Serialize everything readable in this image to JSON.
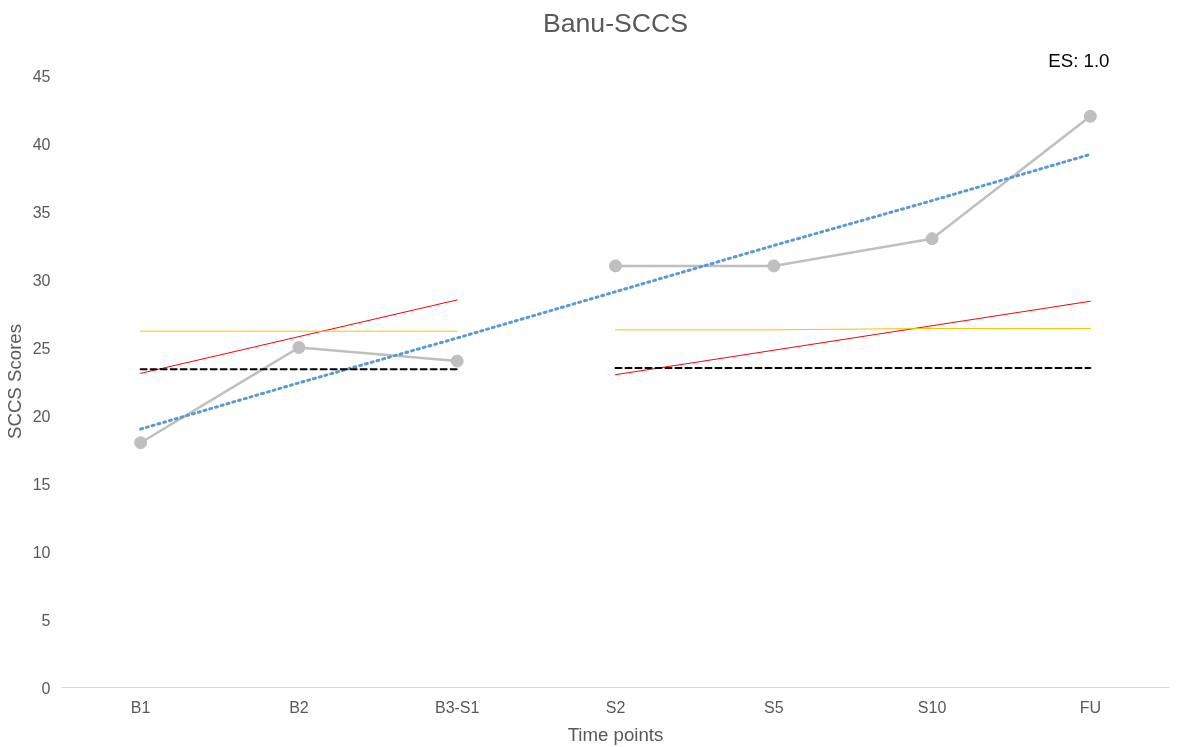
{
  "chart_data": {
    "type": "line",
    "title": "Banu-SCCS",
    "xlabel": "Time points",
    "ylabel": "SCCS Scores",
    "annotations": [
      "ES: 1.0"
    ],
    "categories": [
      "B1",
      "B2",
      "B3-S1",
      "S2",
      "S5",
      "S10",
      "FU"
    ],
    "ylim": [
      0,
      45
    ],
    "yticks": [
      0,
      5,
      10,
      15,
      20,
      25,
      30,
      35,
      40,
      45
    ],
    "grid": false,
    "series": [
      {
        "color": "#bfbfbf",
        "marker": "circle",
        "line_style": "solid",
        "values": [
          18,
          25,
          24,
          null,
          null,
          null,
          null
        ]
      },
      {
        "color": "#bfbfbf",
        "marker": "circle",
        "line_style": "solid",
        "values": [
          null,
          null,
          null,
          31,
          31,
          33,
          42
        ]
      },
      {
        "type": "line",
        "color": "#5b9bd5",
        "marker": "none",
        "line_style": "dotted",
        "values": [
          19.0,
          22.4,
          25.7,
          29.1,
          32.5,
          35.8,
          39.2
        ]
      },
      {
        "type": "line",
        "color": "#ff0000",
        "marker": "none",
        "line_style": "solid",
        "values": [
          23.1,
          25.8,
          28.5,
          null,
          null,
          null,
          null
        ]
      },
      {
        "type": "line",
        "color": "#ffc000",
        "marker": "none",
        "line_style": "solid",
        "values": [
          26.2,
          26.2,
          26.2,
          null,
          null,
          null,
          null
        ]
      },
      {
        "type": "line",
        "color": "#000000",
        "marker": "none",
        "line_style": "dashed",
        "values": [
          23.4,
          23.4,
          23.4,
          null,
          null,
          null,
          null
        ]
      },
      {
        "type": "line",
        "color": "#ff0000",
        "marker": "none",
        "line_style": "solid",
        "values": [
          null,
          null,
          null,
          23.0,
          24.8,
          26.6,
          28.4
        ]
      },
      {
        "type": "line",
        "color": "#ffc000",
        "marker": "none",
        "line_style": "solid",
        "values": [
          null,
          null,
          null,
          26.3,
          26.3,
          26.4,
          26.4
        ]
      },
      {
        "type": "line",
        "color": "#000000",
        "marker": "none",
        "line_style": "dashed",
        "values": [
          null,
          null,
          null,
          23.5,
          23.5,
          23.5,
          23.5
        ]
      }
    ]
  }
}
